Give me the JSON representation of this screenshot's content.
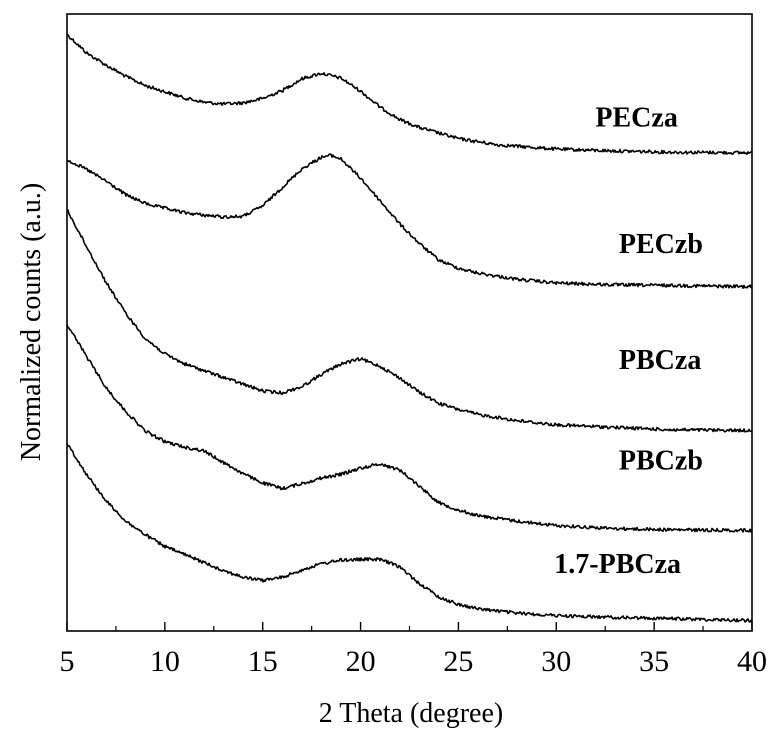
{
  "chart_data": {
    "type": "line",
    "title": "",
    "xlabel": "2 Theta (degree)",
    "ylabel": "Normalized counts (a.u.)",
    "xlim": [
      5,
      40
    ],
    "xticks": [
      5,
      10,
      15,
      20,
      25,
      30,
      35,
      40
    ],
    "ylim": [
      0,
      1
    ],
    "y_ticks_shown": false,
    "grid": false,
    "legend": "none (series labeled directly at right of each curve)",
    "series": [
      {
        "name": "PECza",
        "x": [
          5,
          6,
          7,
          8,
          9,
          10,
          11,
          12,
          13,
          14,
          15,
          16,
          17,
          18,
          19,
          20,
          21,
          22,
          23,
          24,
          25,
          27,
          30,
          33,
          36,
          40
        ],
        "y": [
          0.967,
          0.937,
          0.917,
          0.899,
          0.884,
          0.874,
          0.864,
          0.857,
          0.854,
          0.856,
          0.863,
          0.876,
          0.895,
          0.904,
          0.896,
          0.875,
          0.849,
          0.829,
          0.816,
          0.807,
          0.798,
          0.788,
          0.781,
          0.778,
          0.776,
          0.775
        ]
      },
      {
        "name": "PECzb",
        "x": [
          5,
          6,
          7,
          8,
          9,
          10,
          11,
          12,
          13,
          14,
          15,
          16,
          17,
          18,
          18.5,
          19,
          20,
          21,
          22,
          23,
          24,
          25,
          26,
          28,
          30,
          33,
          36,
          40
        ],
        "y": [
          0.764,
          0.748,
          0.729,
          0.707,
          0.693,
          0.685,
          0.678,
          0.674,
          0.671,
          0.672,
          0.689,
          0.719,
          0.749,
          0.768,
          0.771,
          0.765,
          0.734,
          0.697,
          0.66,
          0.628,
          0.601,
          0.588,
          0.58,
          0.57,
          0.564,
          0.561,
          0.56,
          0.558
        ]
      },
      {
        "name": "PBCza",
        "x": [
          5,
          6,
          7,
          8,
          9,
          10,
          11,
          12,
          13,
          14,
          15,
          16,
          17,
          18,
          19,
          20,
          21,
          22,
          23,
          24,
          25,
          26,
          28,
          30,
          33,
          36,
          40
        ],
        "y": [
          0.683,
          0.623,
          0.565,
          0.515,
          0.474,
          0.449,
          0.433,
          0.422,
          0.411,
          0.4,
          0.389,
          0.386,
          0.396,
          0.416,
          0.433,
          0.441,
          0.429,
          0.41,
          0.387,
          0.369,
          0.359,
          0.351,
          0.341,
          0.334,
          0.33,
          0.326,
          0.325
        ]
      },
      {
        "name": "PBCzb",
        "x": [
          5,
          6,
          7,
          8,
          9,
          10,
          11,
          12,
          13,
          14,
          15,
          16,
          17,
          18,
          19,
          20,
          21,
          22,
          23,
          24,
          25,
          26,
          28,
          30,
          33,
          36,
          40
        ],
        "y": [
          0.497,
          0.445,
          0.394,
          0.356,
          0.324,
          0.307,
          0.298,
          0.292,
          0.273,
          0.255,
          0.24,
          0.231,
          0.239,
          0.248,
          0.254,
          0.264,
          0.271,
          0.261,
          0.235,
          0.208,
          0.196,
          0.187,
          0.178,
          0.171,
          0.166,
          0.164,
          0.163
        ]
      },
      {
        "name": "1.7-PBCza",
        "x": [
          5,
          6,
          7,
          8,
          9,
          10,
          11,
          12,
          13,
          14,
          15,
          16,
          17,
          18,
          19,
          20,
          21,
          22,
          23,
          24,
          25,
          26,
          28,
          30,
          33,
          36,
          40
        ],
        "y": [
          0.304,
          0.254,
          0.211,
          0.178,
          0.156,
          0.137,
          0.124,
          0.111,
          0.098,
          0.087,
          0.082,
          0.087,
          0.099,
          0.109,
          0.115,
          0.116,
          0.116,
          0.104,
          0.077,
          0.055,
          0.043,
          0.036,
          0.029,
          0.025,
          0.022,
          0.02,
          0.017
        ]
      }
    ]
  }
}
